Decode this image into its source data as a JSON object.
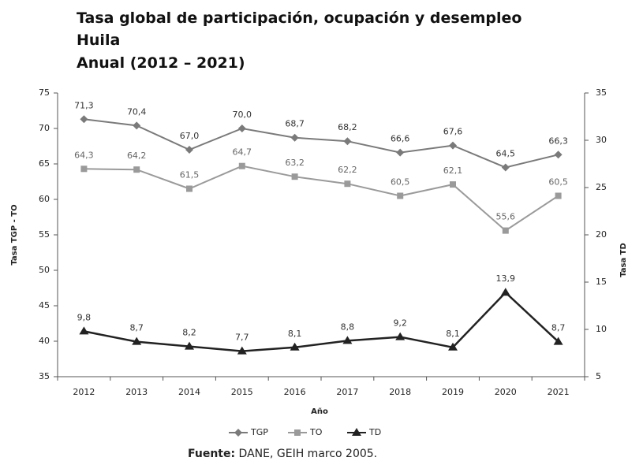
{
  "chart_data": {
    "type": "line",
    "title": "Tasa global de participación, ocupación y desempleo",
    "subtitle": "Huila",
    "period": "Anual (2012 – 2021)",
    "xlabel": "Año",
    "ylabel": "Tasa TGP - TO",
    "y2label": "Tasa TD",
    "categories": [
      "2012",
      "2013",
      "2014",
      "2015",
      "2016",
      "2017",
      "2018",
      "2019",
      "2020",
      "2021"
    ],
    "series": [
      {
        "name": "TGP",
        "color": "#7a7a7a",
        "marker": "diamond",
        "values": [
          71.3,
          70.4,
          67.0,
          70.0,
          68.7,
          68.2,
          66.6,
          67.6,
          64.5,
          66.3
        ],
        "value_labels": [
          "71,3",
          "70,4",
          "67,0",
          "70,0",
          "68,7",
          "68,2",
          "66,6",
          "67,6",
          "64,5",
          "66,3"
        ]
      },
      {
        "name": "TO",
        "color": "#9a9a9a",
        "marker": "square",
        "values": [
          64.3,
          64.2,
          61.5,
          64.7,
          63.2,
          62.2,
          60.5,
          62.1,
          55.6,
          60.5
        ],
        "value_labels": [
          "64,3",
          "64,2",
          "61,5",
          "64,7",
          "63,2",
          "62,2",
          "60,5",
          "62,1",
          "55,6",
          "60,5"
        ]
      },
      {
        "name": "TD",
        "color": "#222222",
        "marker": "triangle",
        "axis": "y2",
        "values": [
          9.8,
          8.7,
          8.2,
          7.7,
          8.1,
          8.8,
          9.2,
          8.1,
          13.9,
          8.7
        ],
        "value_labels": [
          "9,8",
          "8,7",
          "8,2",
          "7,7",
          "8,1",
          "8,8",
          "9,2",
          "8,1",
          "13,9",
          "8,7"
        ]
      }
    ],
    "ylim": [
      35,
      75
    ],
    "yticks": [
      35,
      40,
      45,
      50,
      55,
      60,
      65,
      70,
      75
    ],
    "y2lim": [
      5,
      35
    ],
    "y2ticks": [
      5,
      10,
      15,
      20,
      25,
      30,
      35
    ],
    "legend": "bottom",
    "source_label": "Fuente:",
    "source": "DANE, GEIH marco 2005."
  }
}
